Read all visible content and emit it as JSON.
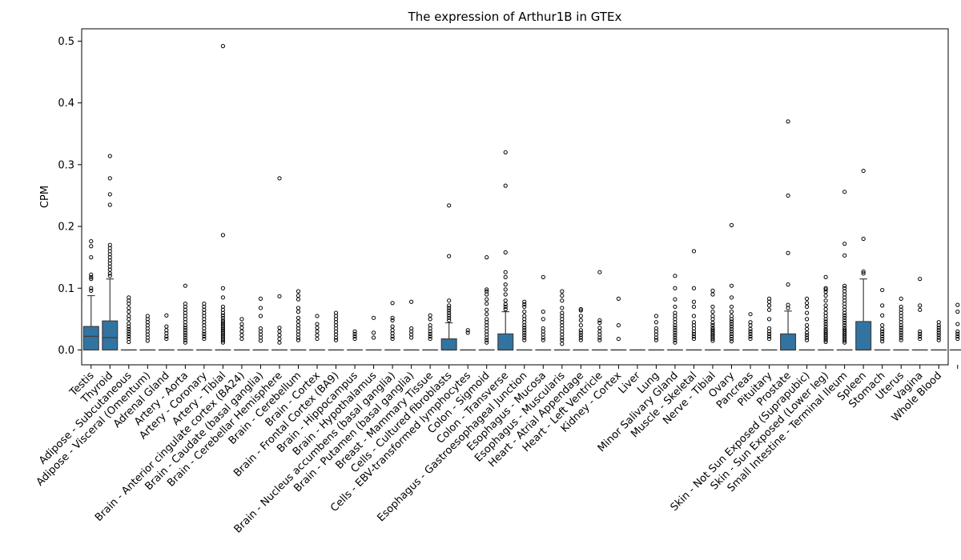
{
  "chart_data": {
    "type": "box",
    "title": "The expression of Arthur1B in GTEx",
    "xlabel": "",
    "ylabel": "CPM",
    "ylim": [
      -0.024,
      0.52
    ],
    "yticks": [
      "0.0",
      "0.1",
      "0.2",
      "0.3",
      "0.4",
      "0.5"
    ],
    "grid": false,
    "box_color": "#3274a1",
    "categories": [
      "Testis",
      "Thyroid",
      "Adipose - Subcutaneous",
      "Adipose - Visceral (Omentum)",
      "Adrenal Gland",
      "Artery - Aorta",
      "Artery - Coronary",
      "Artery - Tibial",
      "Brain - Anterior cingulate cortex (BA24)",
      "Brain - Caudate (basal ganglia)",
      "Brain - Cerebellar Hemisphere",
      "Brain - Cerebellum",
      "Brain - Cortex",
      "Brain - Frontal Cortex (BA9)",
      "Brain - Hippocampus",
      "Brain - Hypothalamus",
      "Brain - Nucleus accumbens (basal ganglia)",
      "Brain - Putamen (basal ganglia)",
      "Breast - Mammary Tissue",
      "Cells - Cultured fibroblasts",
      "Cells - EBV-transformed lymphocytes",
      "Colon - Sigmoid",
      "Colon - Transverse",
      "Esophagus - Gastroesophageal Junction",
      "Esophagus - Mucosa",
      "Esophagus - Muscularis",
      "Heart - Atrial Appendage",
      "Heart - Left Ventricle",
      "Kidney - Cortex",
      "Liver",
      "Lung",
      "Minor Salivary Gland",
      "Muscle - Skeletal",
      "Nerve - Tibial",
      "Ovary",
      "Pancreas",
      "Pituitary",
      "Prostate",
      "Skin - Not Sun Exposed (Suprapubic)",
      "Skin - Sun Exposed (Lower leg)",
      "Small Intestine - Terminal Ileum",
      "Spleen",
      "Stomach",
      "Uterus",
      "Vagina",
      "Whole Blood"
    ],
    "boxes": [
      {
        "q1": 0.0,
        "median": 0.022,
        "q3": 0.038,
        "whislo": 0.0,
        "whishi": 0.088,
        "fliers": [
          0.096,
          0.1,
          0.115,
          0.118,
          0.122,
          0.15,
          0.168,
          0.176
        ]
      },
      {
        "q1": 0.0,
        "median": 0.02,
        "q3": 0.047,
        "whislo": 0.0,
        "whishi": 0.115,
        "fliers": [
          0.12,
          0.124,
          0.13,
          0.135,
          0.14,
          0.145,
          0.15,
          0.155,
          0.16,
          0.165,
          0.17,
          0.235,
          0.252,
          0.278,
          0.314
        ]
      },
      {
        "q1": 0.0,
        "median": 0.0,
        "q3": 0.0,
        "whislo": 0.0,
        "whishi": 0.0,
        "fliers": [
          0.013,
          0.018,
          0.022,
          0.026,
          0.03,
          0.034,
          0.038,
          0.043,
          0.05,
          0.055,
          0.062,
          0.068,
          0.075,
          0.08,
          0.085
        ]
      },
      {
        "q1": 0.0,
        "median": 0.0,
        "q3": 0.0,
        "whislo": 0.0,
        "whishi": 0.0,
        "fliers": [
          0.015,
          0.02,
          0.025,
          0.03,
          0.035,
          0.04,
          0.045,
          0.05,
          0.055
        ]
      },
      {
        "q1": 0.0,
        "median": 0.0,
        "q3": 0.0,
        "whislo": 0.0,
        "whishi": 0.0,
        "fliers": [
          0.018,
          0.022,
          0.027,
          0.032,
          0.038,
          0.056
        ]
      },
      {
        "q1": 0.0,
        "median": 0.0,
        "q3": 0.0,
        "whislo": 0.0,
        "whishi": 0.0,
        "fliers": [
          0.012,
          0.016,
          0.02,
          0.024,
          0.028,
          0.032,
          0.036,
          0.04,
          0.045,
          0.05,
          0.055,
          0.06,
          0.065,
          0.07,
          0.075,
          0.104
        ]
      },
      {
        "q1": 0.0,
        "median": 0.0,
        "q3": 0.0,
        "whislo": 0.0,
        "whishi": 0.0,
        "fliers": [
          0.018,
          0.022,
          0.026,
          0.03,
          0.035,
          0.04,
          0.045,
          0.05,
          0.055,
          0.06,
          0.065,
          0.07,
          0.075
        ]
      },
      {
        "q1": 0.0,
        "median": 0.0,
        "q3": 0.0,
        "whislo": 0.0,
        "whishi": 0.0,
        "fliers": [
          0.012,
          0.015,
          0.018,
          0.021,
          0.024,
          0.027,
          0.03,
          0.033,
          0.036,
          0.039,
          0.042,
          0.045,
          0.048,
          0.052,
          0.056,
          0.06,
          0.065,
          0.07,
          0.085,
          0.1,
          0.186,
          0.492
        ]
      },
      {
        "q1": 0.0,
        "median": 0.0,
        "q3": 0.0,
        "whislo": 0.0,
        "whishi": 0.0,
        "fliers": [
          0.018,
          0.024,
          0.03,
          0.036,
          0.042,
          0.05
        ]
      },
      {
        "q1": 0.0,
        "median": 0.0,
        "q3": 0.0,
        "whislo": 0.0,
        "whishi": 0.0,
        "fliers": [
          0.015,
          0.02,
          0.025,
          0.03,
          0.035,
          0.055,
          0.068,
          0.083
        ]
      },
      {
        "q1": 0.0,
        "median": 0.0,
        "q3": 0.0,
        "whislo": 0.0,
        "whishi": 0.0,
        "fliers": [
          0.012,
          0.018,
          0.024,
          0.03,
          0.036,
          0.087,
          0.278
        ]
      },
      {
        "q1": 0.0,
        "median": 0.0,
        "q3": 0.0,
        "whislo": 0.0,
        "whishi": 0.0,
        "fliers": [
          0.016,
          0.02,
          0.025,
          0.03,
          0.035,
          0.04,
          0.046,
          0.052,
          0.062,
          0.068,
          0.082,
          0.088,
          0.095
        ]
      },
      {
        "q1": 0.0,
        "median": 0.0,
        "q3": 0.0,
        "whislo": 0.0,
        "whishi": 0.0,
        "fliers": [
          0.018,
          0.024,
          0.03,
          0.036,
          0.042,
          0.055
        ]
      },
      {
        "q1": 0.0,
        "median": 0.0,
        "q3": 0.0,
        "whislo": 0.0,
        "whishi": 0.0,
        "fliers": [
          0.016,
          0.02,
          0.025,
          0.03,
          0.035,
          0.04,
          0.045,
          0.05,
          0.055,
          0.06
        ]
      },
      {
        "q1": 0.0,
        "median": 0.0,
        "q3": 0.0,
        "whislo": 0.0,
        "whishi": 0.0,
        "fliers": [
          0.018,
          0.022,
          0.026,
          0.03
        ]
      },
      {
        "q1": 0.0,
        "median": 0.0,
        "q3": 0.0,
        "whislo": 0.0,
        "whishi": 0.0,
        "fliers": [
          0.02,
          0.028,
          0.052
        ]
      },
      {
        "q1": 0.0,
        "median": 0.0,
        "q3": 0.0,
        "whislo": 0.0,
        "whishi": 0.0,
        "fliers": [
          0.018,
          0.022,
          0.027,
          0.032,
          0.038,
          0.048,
          0.052,
          0.076
        ]
      },
      {
        "q1": 0.0,
        "median": 0.0,
        "q3": 0.0,
        "whislo": 0.0,
        "whishi": 0.0,
        "fliers": [
          0.02,
          0.025,
          0.03,
          0.035,
          0.078
        ]
      },
      {
        "q1": 0.0,
        "median": 0.0,
        "q3": 0.0,
        "whislo": 0.0,
        "whishi": 0.0,
        "fliers": [
          0.018,
          0.022,
          0.026,
          0.03,
          0.035,
          0.04,
          0.05,
          0.056
        ]
      },
      {
        "q1": 0.0,
        "median": 0.0,
        "q3": 0.018,
        "whislo": 0.0,
        "whishi": 0.044,
        "fliers": [
          0.048,
          0.052,
          0.056,
          0.06,
          0.064,
          0.068,
          0.072,
          0.08,
          0.152,
          0.234
        ]
      },
      {
        "q1": 0.0,
        "median": 0.0,
        "q3": 0.0,
        "whislo": 0.0,
        "whishi": 0.0,
        "fliers": [
          0.028,
          0.032
        ]
      },
      {
        "q1": 0.0,
        "median": 0.0,
        "q3": 0.0,
        "whislo": 0.0,
        "whishi": 0.0,
        "fliers": [
          0.012,
          0.016,
          0.02,
          0.025,
          0.03,
          0.035,
          0.04,
          0.045,
          0.05,
          0.058,
          0.065,
          0.075,
          0.082,
          0.09,
          0.095,
          0.098,
          0.15
        ]
      },
      {
        "q1": 0.0,
        "median": 0.0,
        "q3": 0.026,
        "whislo": 0.0,
        "whishi": 0.062,
        "fliers": [
          0.066,
          0.07,
          0.074,
          0.08,
          0.09,
          0.098,
          0.106,
          0.118,
          0.126,
          0.158,
          0.266,
          0.32
        ]
      },
      {
        "q1": 0.0,
        "median": 0.0,
        "q3": 0.0,
        "whislo": 0.0,
        "whishi": 0.0,
        "fliers": [
          0.016,
          0.02,
          0.024,
          0.028,
          0.032,
          0.036,
          0.04,
          0.045,
          0.05,
          0.055,
          0.062,
          0.07,
          0.074,
          0.078
        ]
      },
      {
        "q1": 0.0,
        "median": 0.0,
        "q3": 0.0,
        "whislo": 0.0,
        "whishi": 0.0,
        "fliers": [
          0.016,
          0.02,
          0.025,
          0.03,
          0.035,
          0.05,
          0.062,
          0.118
        ]
      },
      {
        "q1": 0.0,
        "median": 0.0,
        "q3": 0.0,
        "whislo": 0.0,
        "whishi": 0.0,
        "fliers": [
          0.01,
          0.016,
          0.02,
          0.025,
          0.03,
          0.035,
          0.04,
          0.045,
          0.05,
          0.055,
          0.06,
          0.068,
          0.08,
          0.088,
          0.095
        ]
      },
      {
        "q1": 0.0,
        "median": 0.0,
        "q3": 0.0,
        "whislo": 0.0,
        "whishi": 0.0,
        "fliers": [
          0.016,
          0.02,
          0.024,
          0.028,
          0.032,
          0.04,
          0.048,
          0.055,
          0.064,
          0.066
        ]
      },
      {
        "q1": 0.0,
        "median": 0.0,
        "q3": 0.0,
        "whislo": 0.0,
        "whishi": 0.0,
        "fliers": [
          0.016,
          0.02,
          0.025,
          0.03,
          0.036,
          0.044,
          0.048,
          0.126
        ]
      },
      {
        "q1": 0.0,
        "median": 0.0,
        "q3": 0.0,
        "whislo": 0.0,
        "whishi": 0.0,
        "fliers": [
          0.018,
          0.04,
          0.083
        ]
      },
      {
        "q1": 0.0,
        "median": 0.0,
        "q3": 0.0,
        "whislo": 0.0,
        "whishi": 0.0,
        "fliers": []
      },
      {
        "q1": 0.0,
        "median": 0.0,
        "q3": 0.0,
        "whislo": 0.0,
        "whishi": 0.0,
        "fliers": [
          0.016,
          0.02,
          0.025,
          0.03,
          0.035,
          0.045,
          0.055
        ]
      },
      {
        "q1": 0.0,
        "median": 0.0,
        "q3": 0.0,
        "whislo": 0.0,
        "whishi": 0.0,
        "fliers": [
          0.012,
          0.016,
          0.02,
          0.024,
          0.028,
          0.032,
          0.036,
          0.04,
          0.045,
          0.05,
          0.055,
          0.06,
          0.07,
          0.082,
          0.1,
          0.12
        ]
      },
      {
        "q1": 0.0,
        "median": 0.0,
        "q3": 0.0,
        "whislo": 0.0,
        "whishi": 0.0,
        "fliers": [
          0.018,
          0.022,
          0.026,
          0.03,
          0.035,
          0.04,
          0.045,
          0.055,
          0.07,
          0.078,
          0.1,
          0.16
        ]
      },
      {
        "q1": 0.0,
        "median": 0.0,
        "q3": 0.0,
        "whislo": 0.0,
        "whishi": 0.0,
        "fliers": [
          0.015,
          0.018,
          0.021,
          0.024,
          0.027,
          0.03,
          0.033,
          0.036,
          0.04,
          0.044,
          0.05,
          0.055,
          0.062,
          0.07,
          0.09,
          0.096
        ]
      },
      {
        "q1": 0.0,
        "median": 0.0,
        "q3": 0.0,
        "whislo": 0.0,
        "whishi": 0.0,
        "fliers": [
          0.014,
          0.018,
          0.022,
          0.026,
          0.03,
          0.034,
          0.038,
          0.042,
          0.046,
          0.05,
          0.055,
          0.062,
          0.07,
          0.085,
          0.104,
          0.202
        ]
      },
      {
        "q1": 0.0,
        "median": 0.0,
        "q3": 0.0,
        "whislo": 0.0,
        "whishi": 0.0,
        "fliers": [
          0.018,
          0.022,
          0.026,
          0.03,
          0.034,
          0.04,
          0.045,
          0.058
        ]
      },
      {
        "q1": 0.0,
        "median": 0.0,
        "q3": 0.0,
        "whislo": 0.0,
        "whishi": 0.0,
        "fliers": [
          0.018,
          0.022,
          0.026,
          0.03,
          0.035,
          0.05,
          0.065,
          0.072,
          0.078,
          0.083
        ]
      },
      {
        "q1": 0.0,
        "median": 0.0,
        "q3": 0.026,
        "whislo": 0.0,
        "whishi": 0.063,
        "fliers": [
          0.068,
          0.073,
          0.106,
          0.157,
          0.25,
          0.37
        ]
      },
      {
        "q1": 0.0,
        "median": 0.0,
        "q3": 0.0,
        "whislo": 0.0,
        "whishi": 0.0,
        "fliers": [
          0.016,
          0.02,
          0.024,
          0.028,
          0.034,
          0.04,
          0.05,
          0.06,
          0.07,
          0.076,
          0.083
        ]
      },
      {
        "q1": 0.0,
        "median": 0.0,
        "q3": 0.0,
        "whislo": 0.0,
        "whishi": 0.0,
        "fliers": [
          0.013,
          0.016,
          0.019,
          0.022,
          0.025,
          0.028,
          0.031,
          0.034,
          0.038,
          0.042,
          0.046,
          0.05,
          0.055,
          0.06,
          0.066,
          0.072,
          0.08,
          0.088,
          0.094,
          0.098,
          0.1,
          0.118
        ]
      },
      {
        "q1": 0.0,
        "median": 0.0,
        "q3": 0.0,
        "whislo": 0.0,
        "whishi": 0.0,
        "fliers": [
          0.012,
          0.015,
          0.018,
          0.021,
          0.024,
          0.027,
          0.03,
          0.033,
          0.036,
          0.04,
          0.044,
          0.048,
          0.052,
          0.056,
          0.06,
          0.065,
          0.07,
          0.075,
          0.08,
          0.085,
          0.09,
          0.095,
          0.1,
          0.104,
          0.153,
          0.172,
          0.256
        ]
      },
      {
        "q1": 0.0,
        "median": 0.0,
        "q3": 0.046,
        "whislo": 0.0,
        "whishi": 0.115,
        "fliers": [
          0.124,
          0.127,
          0.18,
          0.29
        ]
      },
      {
        "q1": 0.0,
        "median": 0.0,
        "q3": 0.0,
        "whislo": 0.0,
        "whishi": 0.0,
        "fliers": [
          0.014,
          0.018,
          0.022,
          0.026,
          0.03,
          0.034,
          0.04,
          0.056,
          0.072,
          0.097
        ]
      },
      {
        "q1": 0.0,
        "median": 0.0,
        "q3": 0.0,
        "whislo": 0.0,
        "whishi": 0.0,
        "fliers": [
          0.016,
          0.02,
          0.024,
          0.028,
          0.032,
          0.036,
          0.04,
          0.045,
          0.05,
          0.055,
          0.06,
          0.065,
          0.07,
          0.083
        ]
      },
      {
        "q1": 0.0,
        "median": 0.0,
        "q3": 0.0,
        "whislo": 0.0,
        "whishi": 0.0,
        "fliers": [
          0.018,
          0.022,
          0.026,
          0.03,
          0.065,
          0.072,
          0.115
        ]
      },
      {
        "q1": 0.0,
        "median": 0.0,
        "q3": 0.0,
        "whislo": 0.0,
        "whishi": 0.0,
        "fliers": [
          0.016,
          0.02,
          0.024,
          0.028,
          0.032,
          0.036,
          0.04,
          0.045
        ]
      },
      {
        "q1": 0.0,
        "median": 0.0,
        "q3": 0.0,
        "whislo": 0.0,
        "whishi": 0.0,
        "fliers": [
          0.018,
          0.022,
          0.026,
          0.03,
          0.042,
          0.062,
          0.073
        ]
      }
    ]
  }
}
